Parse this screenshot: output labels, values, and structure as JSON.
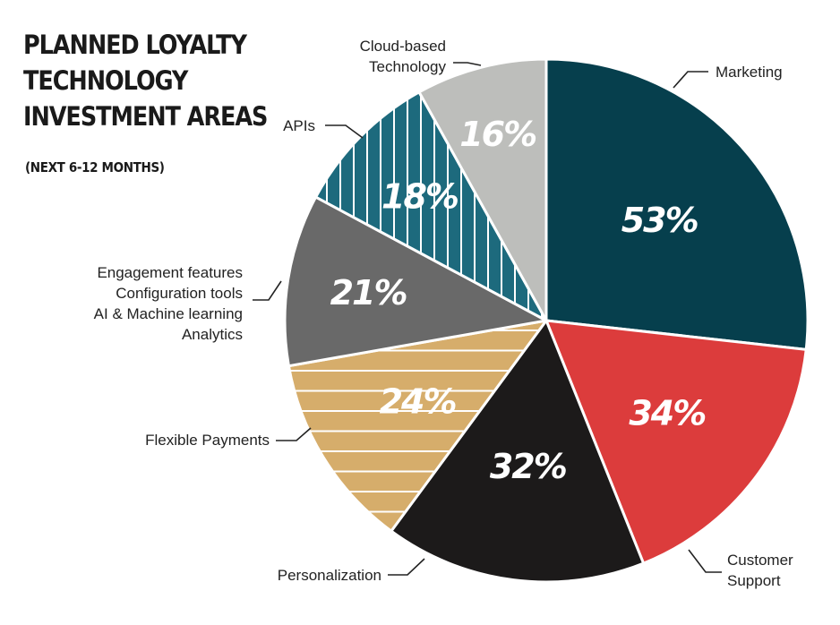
{
  "heading": {
    "title_lines": [
      "PLANNED LOYALTY",
      "TECHNOLOGY",
      "INVESTMENT AREAS"
    ],
    "subtitle": "(NEXT 6-12 MONTHS)"
  },
  "chart_data": {
    "type": "pie",
    "title": "PLANNED LOYALTY TECHNOLOGY INVESTMENT AREAS",
    "subtitle": "(NEXT 6-12 MONTHS)",
    "slices": [
      {
        "label": "Marketing",
        "label_lines": [
          "Marketing"
        ],
        "value": 53,
        "display": "53%",
        "color": "#063f4d",
        "pattern": "solid"
      },
      {
        "label": "Customer Support",
        "label_lines": [
          "Customer",
          "Support"
        ],
        "value": 34,
        "display": "34%",
        "color": "#dc3c3c",
        "pattern": "solid"
      },
      {
        "label": "Personalization",
        "label_lines": [
          "Personalization"
        ],
        "value": 32,
        "display": "32%",
        "color": "#1c1a1a",
        "pattern": "solid"
      },
      {
        "label": "Flexible Payments",
        "label_lines": [
          "Flexible Payments"
        ],
        "value": 24,
        "display": "24%",
        "color": "#d6ad6b",
        "pattern": "horizontal-stripes"
      },
      {
        "label": "Engagement features / Configuration tools / AI & Machine learning / Analytics",
        "label_lines": [
          "Engagement features",
          "Configuration tools",
          "AI & Machine learning",
          "Analytics"
        ],
        "value": 21,
        "display": "21%",
        "color": "#696969",
        "pattern": "solid"
      },
      {
        "label": "APIs",
        "label_lines": [
          "APIs"
        ],
        "value": 18,
        "display": "18%",
        "color": "#1d6a7d",
        "pattern": "vertical-stripes"
      },
      {
        "label": "Cloud-based Technology",
        "label_lines": [
          "Cloud-based",
          "Technology"
        ],
        "value": 16,
        "display": "16%",
        "color": "#bdbebb",
        "pattern": "solid"
      }
    ]
  }
}
